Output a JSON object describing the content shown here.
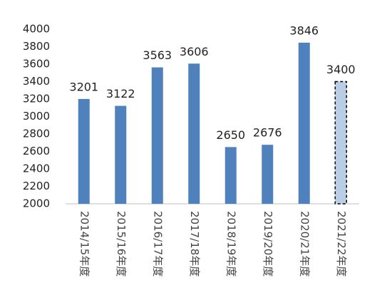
{
  "chart_data": {
    "type": "bar",
    "categories": [
      "2014/15年度",
      "2015/16年度",
      "2016/17年度",
      "2017/18年度",
      "2018/19年度",
      "2019/20年度",
      "2020/21年度",
      "2021/22年度"
    ],
    "values": [
      3201,
      3122,
      3563,
      3606,
      2650,
      2676,
      3846,
      3400
    ],
    "colors": [
      "#4f81bd",
      "#4f81bd",
      "#4f81bd",
      "#4f81bd",
      "#4f81bd",
      "#4f81bd",
      "#4f81bd",
      "#b9cde5"
    ],
    "dashed_outline": [
      false,
      false,
      false,
      false,
      false,
      false,
      false,
      true
    ],
    "ylim": [
      2000,
      4000
    ],
    "yticks": [
      2000,
      2200,
      2400,
      2600,
      2800,
      3000,
      3200,
      3400,
      3600,
      3800,
      4000
    ],
    "grid": false
  }
}
